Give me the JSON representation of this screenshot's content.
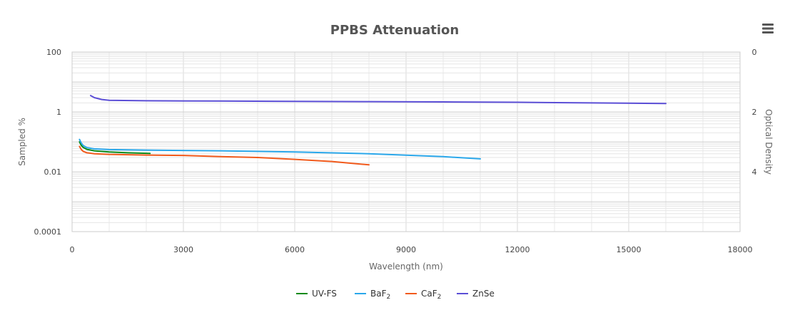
{
  "chart_data": {
    "type": "line",
    "title": "PPBS Attenuation",
    "xlabel": "Wavelength (nm)",
    "ylabel": "Sampled %",
    "y2label": "Optical Density",
    "xlim": [
      0,
      18000
    ],
    "ylim": [
      0.0001,
      100
    ],
    "y_scale": "log",
    "grid": true,
    "legend_position": "bottom-center",
    "x_ticks": [
      "0",
      "3000",
      "6000",
      "9000",
      "12000",
      "15000",
      "18000"
    ],
    "y_ticks": [
      "100",
      "1",
      "0.01",
      "0.0001"
    ],
    "y2_ticks": [
      "0",
      "2",
      "4"
    ],
    "series": [
      {
        "name": "UV-FS",
        "color": "#0b8a1a",
        "points": [
          [
            200,
            0.1
          ],
          [
            250,
            0.075
          ],
          [
            300,
            0.065
          ],
          [
            400,
            0.056
          ],
          [
            600,
            0.05
          ],
          [
            1000,
            0.046
          ],
          [
            1500,
            0.043
          ],
          [
            2100,
            0.041
          ]
        ]
      },
      {
        "name": "BaF2",
        "name_base": "BaF",
        "name_sub": "2",
        "color": "#2aa7ea",
        "points": [
          [
            200,
            0.12
          ],
          [
            250,
            0.09
          ],
          [
            300,
            0.075
          ],
          [
            400,
            0.064
          ],
          [
            600,
            0.058
          ],
          [
            1000,
            0.055
          ],
          [
            2000,
            0.053
          ],
          [
            4000,
            0.05
          ],
          [
            6000,
            0.046
          ],
          [
            8000,
            0.04
          ],
          [
            10000,
            0.032
          ],
          [
            11000,
            0.027
          ]
        ]
      },
      {
        "name": "CaF2",
        "name_base": "CaF",
        "name_sub": "2",
        "color": "#f15a1c",
        "points": [
          [
            200,
            0.07
          ],
          [
            250,
            0.055
          ],
          [
            300,
            0.048
          ],
          [
            400,
            0.043
          ],
          [
            600,
            0.04
          ],
          [
            1000,
            0.038
          ],
          [
            2000,
            0.036
          ],
          [
            3000,
            0.035
          ],
          [
            4000,
            0.032
          ],
          [
            5000,
            0.03
          ],
          [
            6000,
            0.026
          ],
          [
            7000,
            0.022
          ],
          [
            8000,
            0.017
          ]
        ]
      },
      {
        "name": "ZnSe",
        "color": "#5b4ed6",
        "points": [
          [
            500,
            3.5
          ],
          [
            600,
            3.0
          ],
          [
            800,
            2.6
          ],
          [
            1000,
            2.45
          ],
          [
            2000,
            2.35
          ],
          [
            4000,
            2.3
          ],
          [
            6000,
            2.25
          ],
          [
            8000,
            2.2
          ],
          [
            10000,
            2.15
          ],
          [
            12000,
            2.1
          ],
          [
            14000,
            2.0
          ],
          [
            16000,
            1.9
          ]
        ]
      }
    ]
  },
  "menu_icon": "hamburger-menu-icon"
}
